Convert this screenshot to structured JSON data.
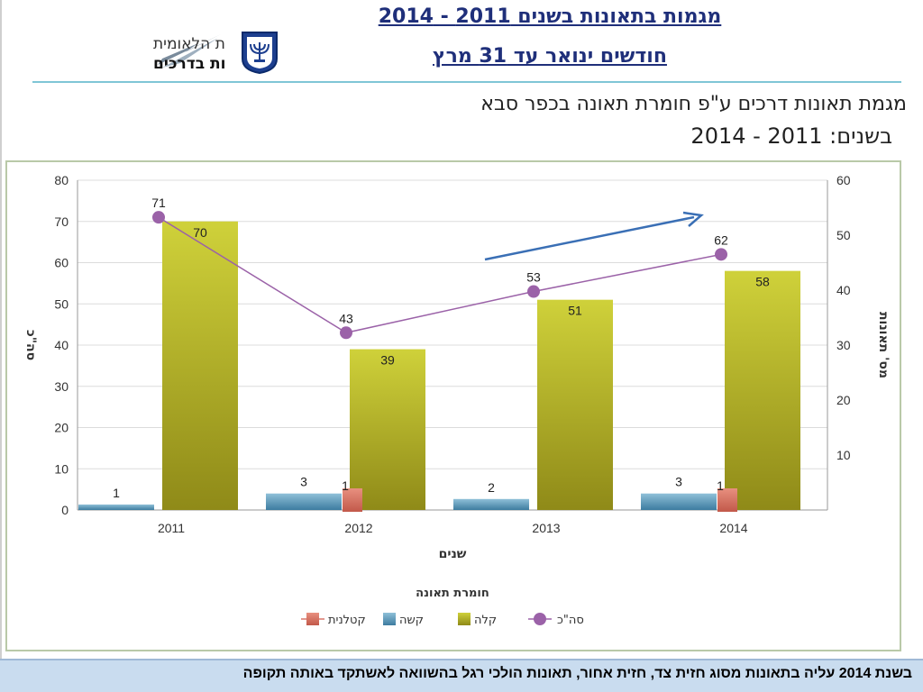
{
  "header": {
    "title_line1": "מגמות בתאונות בשנים 2011 - 2014",
    "title_line2": "חודשים ינואר עד 31 מרץ",
    "logo_line1": "הרשות הלאומית",
    "logo_line2": "לבטיחות בדרכים"
  },
  "subtitle": {
    "line1": "מגמת תאונות דרכים ע\"פ חומרת תאונה בכפר סבא",
    "line2": "בשנים: 2011 - 2014"
  },
  "footer": {
    "text": "בשנת 2014 עליה בתאונות מסוג חזית צד, חזית אחור, תאונות הולכי רגל בהשוואה לאשתקד באותה תקופה"
  },
  "chart_data": {
    "type": "bar",
    "categories": [
      "2011",
      "2012",
      "2013",
      "2014"
    ],
    "xlabel": "שנים",
    "ylabel": "סה\"כ",
    "y2label": "מס' תאונות",
    "ylim": [
      0,
      80
    ],
    "y2lim": [
      0,
      60
    ],
    "yticks": [
      0,
      10,
      20,
      30,
      40,
      50,
      60,
      70,
      80
    ],
    "y2ticks": [
      10,
      20,
      30,
      40,
      50,
      60
    ],
    "legend_title": "חומרת תאונה",
    "legend_position": "bottom",
    "series": [
      {
        "name": "קטלנית",
        "type": "bar",
        "axis": "right",
        "color": "#d9776a",
        "values": [
          null,
          1,
          null,
          1
        ],
        "labels": [
          "",
          "1",
          "",
          "1"
        ]
      },
      {
        "name": "קשה",
        "type": "bar",
        "axis": "right",
        "color": "#5d97b8",
        "values": [
          1,
          3,
          2,
          3
        ],
        "labels": [
          "1",
          "3",
          "2",
          "3"
        ]
      },
      {
        "name": "קלה",
        "type": "bar",
        "axis": "left",
        "color": "#b7b226",
        "values": [
          70,
          39,
          51,
          58
        ],
        "labels": [
          "70",
          "39",
          "51",
          "58"
        ]
      },
      {
        "name": "סה\"כ",
        "type": "line",
        "axis": "left",
        "color": "#9b62a8",
        "values": [
          71,
          43,
          53,
          62
        ],
        "labels": [
          "71",
          "43",
          "53",
          "62"
        ]
      }
    ],
    "annotation": "trend-arrow-up"
  }
}
